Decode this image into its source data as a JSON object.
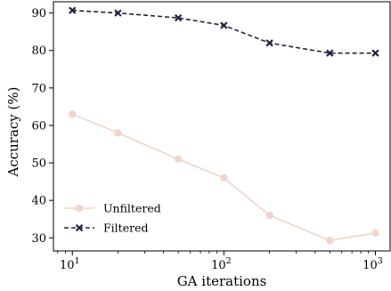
{
  "chart_data": {
    "type": "line",
    "xlabel": "GA iterations",
    "ylabel": "Accuracy (%)",
    "x_scale": "log",
    "xlim": [
      7.5,
      1250
    ],
    "ylim": [
      26.5,
      93
    ],
    "x_ticks": [
      {
        "value": 10,
        "base": "10",
        "exp": "1"
      },
      {
        "value": 100,
        "base": "10",
        "exp": "2"
      },
      {
        "value": 1000,
        "base": "10",
        "exp": "3"
      }
    ],
    "y_ticks": [
      "30",
      "40",
      "50",
      "60",
      "70",
      "80",
      "90"
    ],
    "grid": false,
    "legend_position": "lower-left",
    "x": [
      10,
      20,
      50,
      100,
      200,
      500,
      1000
    ],
    "series": [
      {
        "name": "Unfiltered",
        "values": [
          63,
          58,
          51,
          46,
          36,
          29.3,
          31.3
        ],
        "color": "#eed5cd",
        "marker": "circle",
        "linestyle": "solid"
      },
      {
        "name": "Filtered",
        "values": [
          90.7,
          90,
          88.7,
          86.7,
          82,
          79.3,
          79.3
        ],
        "color": "#2b2140",
        "marker": "x",
        "linestyle": "dashed"
      }
    ]
  }
}
